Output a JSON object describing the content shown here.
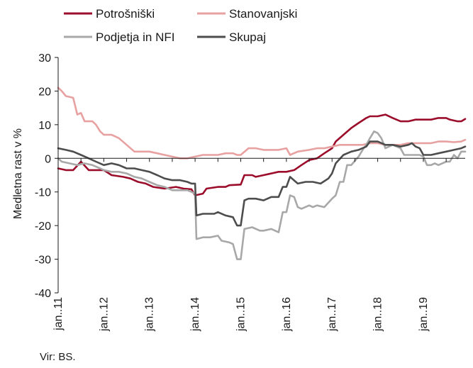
{
  "chart_data": {
    "type": "line",
    "title": "",
    "xlabel": "",
    "ylabel": "Medletna rast v %",
    "ylim": [
      -40,
      30
    ],
    "yticks": [
      30,
      20,
      10,
      0,
      -10,
      -20,
      -30,
      -40
    ],
    "ytick_labels": [
      "30",
      "20",
      "10",
      "0",
      "-10",
      "-20",
      "-30",
      "-40"
    ],
    "xlim": [
      2011.0,
      2019.917
    ],
    "xticks": [
      2011,
      2012,
      2013,
      2014,
      2015,
      2016,
      2017,
      2018,
      2019
    ],
    "xtick_labels": [
      "jan..11",
      "jan..12",
      "jan..13",
      "jan..14",
      "jan..15",
      "jan..16",
      "jan..17",
      "jan..18",
      "jan..19"
    ],
    "grid": false,
    "legend_position": "top",
    "source": "Vir: BS.",
    "series": [
      {
        "name": "Potrošniški",
        "color": "#9b0d2b",
        "points": [
          [
            2011.0,
            -3
          ],
          [
            2011.17,
            -3.5
          ],
          [
            2011.33,
            -3.5
          ],
          [
            2011.5,
            -1
          ],
          [
            2011.67,
            -3.5
          ],
          [
            2011.83,
            -3.5
          ],
          [
            2012.0,
            -3.5
          ],
          [
            2012.17,
            -5
          ],
          [
            2012.42,
            -5.5
          ],
          [
            2012.58,
            -6
          ],
          [
            2012.75,
            -7
          ],
          [
            2012.92,
            -7.5
          ],
          [
            2013.08,
            -8.5
          ],
          [
            2013.33,
            -9
          ],
          [
            2013.58,
            -8.5
          ],
          [
            2013.75,
            -9
          ],
          [
            2013.92,
            -9.2
          ],
          [
            2014.0,
            -11
          ],
          [
            2014.17,
            -10.5
          ],
          [
            2014.25,
            -9
          ],
          [
            2014.5,
            -8.5
          ],
          [
            2014.67,
            -8.5
          ],
          [
            2014.75,
            -8
          ],
          [
            2015.0,
            -7.8
          ],
          [
            2015.08,
            -5
          ],
          [
            2015.25,
            -5
          ],
          [
            2015.33,
            -5.5
          ],
          [
            2015.5,
            -5
          ],
          [
            2015.67,
            -4.5
          ],
          [
            2015.83,
            -4
          ],
          [
            2016.0,
            -4
          ],
          [
            2016.17,
            -3.5
          ],
          [
            2016.33,
            -2
          ],
          [
            2016.5,
            -0.5
          ],
          [
            2016.67,
            0
          ],
          [
            2016.83,
            1.5
          ],
          [
            2017.0,
            3
          ],
          [
            2017.08,
            5
          ],
          [
            2017.25,
            7
          ],
          [
            2017.42,
            9
          ],
          [
            2017.58,
            10.5
          ],
          [
            2017.75,
            12
          ],
          [
            2017.83,
            12.5
          ],
          [
            2018.0,
            12.5
          ],
          [
            2018.17,
            13
          ],
          [
            2018.33,
            12
          ],
          [
            2018.5,
            11
          ],
          [
            2018.67,
            11
          ],
          [
            2018.83,
            11.5
          ],
          [
            2019.0,
            11.5
          ],
          [
            2019.17,
            11.5
          ],
          [
            2019.33,
            12
          ],
          [
            2019.5,
            12
          ],
          [
            2019.58,
            11.5
          ],
          [
            2019.75,
            11
          ],
          [
            2019.83,
            11
          ],
          [
            2019.917,
            11.7
          ]
        ]
      },
      {
        "name": "Stanovanjski",
        "color": "#e8a1a1",
        "points": [
          [
            2011.0,
            21
          ],
          [
            2011.08,
            20
          ],
          [
            2011.17,
            18.5
          ],
          [
            2011.33,
            18
          ],
          [
            2011.42,
            13
          ],
          [
            2011.5,
            13.5
          ],
          [
            2011.58,
            11
          ],
          [
            2011.75,
            11
          ],
          [
            2011.83,
            10
          ],
          [
            2011.92,
            8
          ],
          [
            2012.0,
            7
          ],
          [
            2012.17,
            7
          ],
          [
            2012.33,
            6
          ],
          [
            2012.5,
            4
          ],
          [
            2012.67,
            2
          ],
          [
            2012.83,
            2
          ],
          [
            2013.0,
            2
          ],
          [
            2013.17,
            1.5
          ],
          [
            2013.33,
            1
          ],
          [
            2013.5,
            0.5
          ],
          [
            2013.67,
            0
          ],
          [
            2013.83,
            0
          ],
          [
            2014.0,
            0.5
          ],
          [
            2014.17,
            1
          ],
          [
            2014.33,
            1
          ],
          [
            2014.5,
            1
          ],
          [
            2014.67,
            1.5
          ],
          [
            2014.83,
            1.5
          ],
          [
            2014.92,
            1
          ],
          [
            2015.0,
            1
          ],
          [
            2015.17,
            3
          ],
          [
            2015.33,
            3
          ],
          [
            2015.5,
            2.5
          ],
          [
            2015.67,
            2.5
          ],
          [
            2015.83,
            2.5
          ],
          [
            2016.0,
            3
          ],
          [
            2016.08,
            1
          ],
          [
            2016.25,
            2
          ],
          [
            2016.5,
            2.5
          ],
          [
            2016.67,
            3
          ],
          [
            2016.83,
            3
          ],
          [
            2017.0,
            3.5
          ],
          [
            2017.17,
            4
          ],
          [
            2017.33,
            4
          ],
          [
            2017.5,
            4
          ],
          [
            2017.67,
            4
          ],
          [
            2017.83,
            4.5
          ],
          [
            2018.0,
            4.5
          ],
          [
            2018.17,
            4
          ],
          [
            2018.33,
            4
          ],
          [
            2018.5,
            4
          ],
          [
            2018.67,
            4.5
          ],
          [
            2018.83,
            4.5
          ],
          [
            2019.0,
            4.5
          ],
          [
            2019.17,
            4.5
          ],
          [
            2019.33,
            5
          ],
          [
            2019.5,
            5
          ],
          [
            2019.67,
            4.8
          ],
          [
            2019.83,
            5
          ],
          [
            2019.917,
            5.5
          ]
        ]
      },
      {
        "name": "Podjetja in NFI",
        "color": "#a8a8a8",
        "points": [
          [
            2011.0,
            0
          ],
          [
            2011.08,
            -1
          ],
          [
            2011.25,
            -1.5
          ],
          [
            2011.42,
            -2
          ],
          [
            2011.58,
            -1.5
          ],
          [
            2011.75,
            -2
          ],
          [
            2011.92,
            -3
          ],
          [
            2012.0,
            -3.5
          ],
          [
            2012.17,
            -4
          ],
          [
            2012.33,
            -4
          ],
          [
            2012.5,
            -4.5
          ],
          [
            2012.67,
            -5.5
          ],
          [
            2012.83,
            -6
          ],
          [
            2013.0,
            -7
          ],
          [
            2013.17,
            -8
          ],
          [
            2013.33,
            -8.5
          ],
          [
            2013.5,
            -9.5
          ],
          [
            2013.67,
            -9.5
          ],
          [
            2013.83,
            -9.5
          ],
          [
            2013.92,
            -10
          ],
          [
            2014.0,
            -10.5
          ],
          [
            2014.03,
            -24
          ],
          [
            2014.17,
            -23.5
          ],
          [
            2014.33,
            -23.5
          ],
          [
            2014.5,
            -23
          ],
          [
            2014.58,
            -24.5
          ],
          [
            2014.75,
            -25
          ],
          [
            2014.83,
            -25.5
          ],
          [
            2014.92,
            -30
          ],
          [
            2015.0,
            -30
          ],
          [
            2015.08,
            -21
          ],
          [
            2015.25,
            -20.5
          ],
          [
            2015.42,
            -21.5
          ],
          [
            2015.5,
            -21.5
          ],
          [
            2015.67,
            -21
          ],
          [
            2015.83,
            -22
          ],
          [
            2015.92,
            -16
          ],
          [
            2016.0,
            -16
          ],
          [
            2016.08,
            -11
          ],
          [
            2016.17,
            -11.5
          ],
          [
            2016.25,
            -14.5
          ],
          [
            2016.33,
            -15
          ],
          [
            2016.5,
            -14
          ],
          [
            2016.58,
            -14.5
          ],
          [
            2016.67,
            -14
          ],
          [
            2016.83,
            -14.5
          ],
          [
            2017.0,
            -12
          ],
          [
            2017.08,
            -11
          ],
          [
            2017.17,
            -7
          ],
          [
            2017.25,
            -7
          ],
          [
            2017.33,
            -2
          ],
          [
            2017.42,
            -2
          ],
          [
            2017.58,
            0.5
          ],
          [
            2017.67,
            2.5
          ],
          [
            2017.75,
            4
          ],
          [
            2017.83,
            6
          ],
          [
            2017.92,
            8
          ],
          [
            2018.0,
            7.5
          ],
          [
            2018.08,
            6
          ],
          [
            2018.17,
            3
          ],
          [
            2018.33,
            4
          ],
          [
            2018.5,
            3
          ],
          [
            2018.58,
            1
          ],
          [
            2018.75,
            1
          ],
          [
            2018.92,
            1
          ],
          [
            2019.0,
            0.5
          ],
          [
            2019.08,
            -2
          ],
          [
            2019.17,
            -2
          ],
          [
            2019.25,
            -1.5
          ],
          [
            2019.33,
            -2
          ],
          [
            2019.5,
            -1
          ],
          [
            2019.58,
            -1
          ],
          [
            2019.67,
            1
          ],
          [
            2019.75,
            0
          ],
          [
            2019.83,
            2
          ],
          [
            2019.917,
            2
          ]
        ]
      },
      {
        "name": "Skupaj",
        "color": "#4d4d4d",
        "points": [
          [
            2011.0,
            3
          ],
          [
            2011.17,
            2.5
          ],
          [
            2011.33,
            2
          ],
          [
            2011.5,
            1
          ],
          [
            2011.67,
            0
          ],
          [
            2011.83,
            -1
          ],
          [
            2012.0,
            -2
          ],
          [
            2012.17,
            -1.5
          ],
          [
            2012.33,
            -2
          ],
          [
            2012.5,
            -3
          ],
          [
            2012.67,
            -3
          ],
          [
            2012.83,
            -3.5
          ],
          [
            2013.0,
            -4
          ],
          [
            2013.17,
            -5
          ],
          [
            2013.33,
            -6
          ],
          [
            2013.5,
            -6.5
          ],
          [
            2013.67,
            -6.5
          ],
          [
            2013.83,
            -7
          ],
          [
            2013.92,
            -7.5
          ],
          [
            2014.0,
            -7.5
          ],
          [
            2014.03,
            -17
          ],
          [
            2014.17,
            -16.5
          ],
          [
            2014.42,
            -16.5
          ],
          [
            2014.5,
            -16
          ],
          [
            2014.67,
            -17
          ],
          [
            2014.83,
            -17.5
          ],
          [
            2014.92,
            -20
          ],
          [
            2015.0,
            -20
          ],
          [
            2015.08,
            -12.5
          ],
          [
            2015.17,
            -12
          ],
          [
            2015.33,
            -12
          ],
          [
            2015.5,
            -12.5
          ],
          [
            2015.67,
            -11.5
          ],
          [
            2015.83,
            -11.5
          ],
          [
            2015.92,
            -8.5
          ],
          [
            2016.0,
            -8.5
          ],
          [
            2016.08,
            -5.5
          ],
          [
            2016.25,
            -7.5
          ],
          [
            2016.42,
            -7
          ],
          [
            2016.58,
            -7
          ],
          [
            2016.75,
            -7.5
          ],
          [
            2016.92,
            -6
          ],
          [
            2017.0,
            -4.5
          ],
          [
            2017.08,
            -1.5
          ],
          [
            2017.25,
            1
          ],
          [
            2017.42,
            2
          ],
          [
            2017.58,
            2.5
          ],
          [
            2017.75,
            3.5
          ],
          [
            2017.83,
            5
          ],
          [
            2018.0,
            5
          ],
          [
            2018.17,
            4
          ],
          [
            2018.33,
            4
          ],
          [
            2018.5,
            3.5
          ],
          [
            2018.67,
            4
          ],
          [
            2018.75,
            4.5
          ],
          [
            2018.83,
            3.5
          ],
          [
            2018.92,
            3
          ],
          [
            2019.0,
            1
          ],
          [
            2019.17,
            1
          ],
          [
            2019.33,
            1.5
          ],
          [
            2019.5,
            2
          ],
          [
            2019.67,
            2.5
          ],
          [
            2019.83,
            3
          ],
          [
            2019.917,
            3.5
          ]
        ]
      }
    ]
  }
}
